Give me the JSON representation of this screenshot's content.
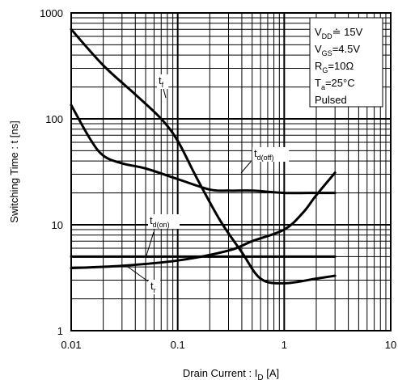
{
  "chart_data": {
    "type": "line",
    "xscale": "log",
    "yscale": "log",
    "xlim": [
      0.01,
      10
    ],
    "ylim": [
      1,
      1000
    ],
    "grid": true,
    "x_ticks": [
      "0.01",
      "0.1",
      "1",
      "10"
    ],
    "y_ticks": [
      "1",
      "10",
      "100",
      "1000"
    ],
    "xlabel": {
      "main": "Drain Current : I",
      "sub": "D",
      "unit": " [A]"
    },
    "ylabel": "Switching Time : t [ns]",
    "conditions": [
      {
        "main": "V",
        "sub": "DD",
        "value": "≐ 15V"
      },
      {
        "main": "V",
        "sub": "GS",
        "value": "=4.5V"
      },
      {
        "main": "R",
        "sub": "G",
        "value": "=10Ω"
      },
      {
        "main": "T",
        "sub": "a",
        "value": "=25°C"
      },
      {
        "main": "Pulsed",
        "sub": "",
        "value": ""
      }
    ],
    "series": [
      {
        "name": "tf",
        "label_main": "t",
        "label_sub": "f",
        "x": [
          0.01,
          0.02,
          0.04,
          0.07,
          0.1,
          0.15,
          0.25,
          0.4,
          0.6,
          1.0,
          2.0,
          3.0
        ],
        "y": [
          700,
          320,
          170,
          100,
          62,
          28,
          11,
          5.5,
          3.1,
          2.8,
          3.1,
          3.3
        ]
      },
      {
        "name": "td(off)",
        "label_main": "t",
        "label_sub": "d(off)",
        "x": [
          0.01,
          0.015,
          0.02,
          0.03,
          0.05,
          0.1,
          0.2,
          0.3,
          0.5,
          1.0,
          2.0,
          3.0
        ],
        "y": [
          135,
          65,
          45,
          38,
          34,
          27,
          21.5,
          21,
          21,
          20,
          20,
          20
        ]
      },
      {
        "name": "td(on)",
        "label_main": "t",
        "label_sub": "d(on)",
        "x": [
          0.01,
          0.03,
          0.1,
          0.3,
          1.0,
          3.0
        ],
        "y": [
          5,
          5,
          5,
          5,
          5,
          5
        ]
      },
      {
        "name": "tr",
        "label_main": "t",
        "label_sub": "r",
        "x": [
          0.01,
          0.03,
          0.1,
          0.3,
          0.5,
          1.0,
          1.5,
          2.0,
          3.0
        ],
        "y": [
          3.9,
          4.1,
          4.6,
          5.7,
          7,
          9,
          13,
          19,
          31
        ]
      }
    ]
  }
}
